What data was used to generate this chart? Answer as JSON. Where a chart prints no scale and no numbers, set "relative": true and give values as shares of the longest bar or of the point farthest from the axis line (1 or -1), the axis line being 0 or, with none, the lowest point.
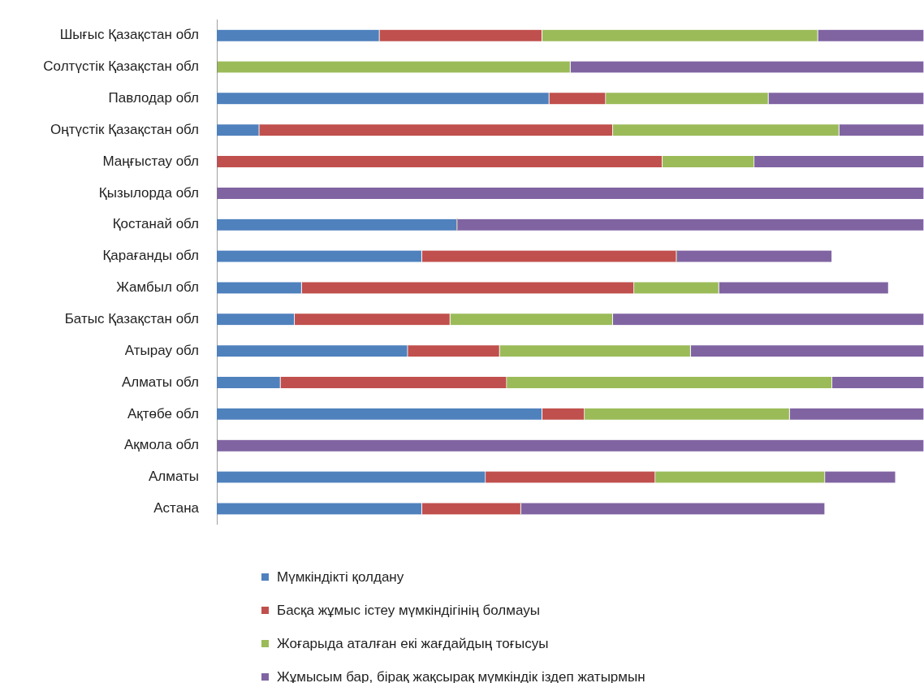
{
  "chart_data": {
    "type": "bar",
    "orientation": "horizontal",
    "stacked": true,
    "relative": true,
    "legend": "bottom",
    "categories": [
      "Шығыс Қазақстан обл",
      "Солтүстік Қазақстан обл",
      "Павлодар обл",
      "Оңтүстік Қазақстан обл",
      "Маңғыстау обл",
      "Қызылорда обл",
      "Қостанай обл",
      "Қарағанды обл",
      "Жамбыл обл",
      "Батыс Қазақстан обл",
      "Атырау обл",
      "Алматы обл",
      "Ақтөбе обл",
      "Ақмола обл",
      "Алматы",
      "Астана"
    ],
    "series": [
      {
        "name": "Мүмкіндікті қолдану",
        "color": "#4f81bd",
        "values": [
          0.23,
          0,
          0.47,
          0.06,
          0,
          0,
          0.34,
          0.29,
          0.12,
          0.11,
          0.27,
          0.09,
          0.46,
          0,
          0.38,
          0.29
        ]
      },
      {
        "name": "Басқа жұмыс істеу мүмкіндігінің болмауы",
        "color": "#c0504d",
        "values": [
          0.23,
          0,
          0.08,
          0.5,
          0.63,
          0,
          0,
          0.36,
          0.47,
          0.22,
          0.13,
          0.32,
          0.06,
          0,
          0.24,
          0.14
        ]
      },
      {
        "name": "Жоғарыда аталған екі жағдайдың тоғысуы",
        "color": "#9bbb59",
        "values": [
          0.39,
          0.5,
          0.23,
          0.32,
          0.13,
          0,
          0,
          0,
          0.12,
          0.23,
          0.27,
          0.46,
          0.29,
          0,
          0.24,
          0
        ]
      },
      {
        "name": "Жұмысым бар, бірақ жақсырақ мүмкіндік іздеп жатырмын",
        "color": "#8064a2",
        "values": [
          0.15,
          0.5,
          0.22,
          0.12,
          0.24,
          1,
          0.66,
          0.22,
          0.24,
          0.44,
          0.33,
          0.13,
          0.19,
          1,
          0.1,
          0.43
        ]
      }
    ]
  }
}
